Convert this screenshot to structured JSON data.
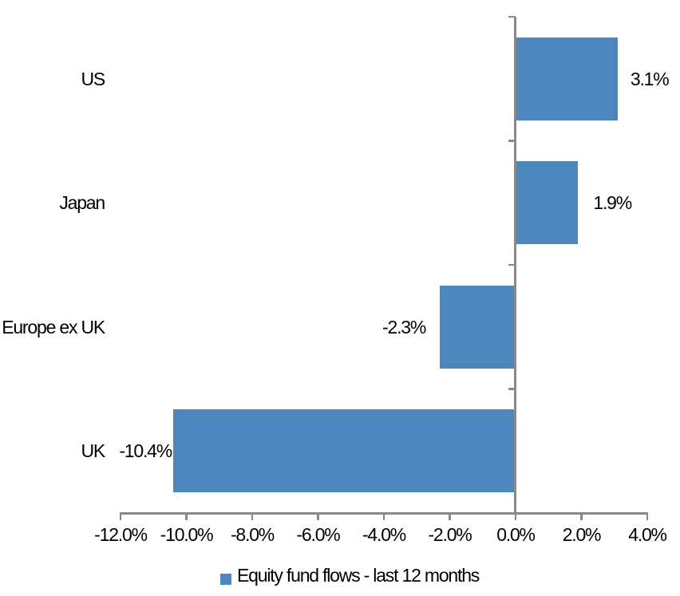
{
  "chart_data": {
    "type": "bar",
    "orientation": "horizontal",
    "title": "",
    "categories": [
      "US",
      "Japan",
      "Europe ex UK",
      "UK"
    ],
    "values": [
      3.1,
      1.9,
      -2.3,
      -10.4
    ],
    "data_labels": [
      "3.1%",
      "1.9%",
      "-2.3%",
      "-10.4%"
    ],
    "series": [
      {
        "name": "Equity fund flows - last 12 months",
        "values": [
          3.1,
          1.9,
          -2.3,
          -10.4
        ]
      }
    ],
    "xlabel": "",
    "ylabel": "",
    "xlim": [
      -12,
      4
    ],
    "x_tick_step": 2,
    "x_tick_labels": [
      "-12.0%",
      "-10.0%",
      "-8.0%",
      "-6.0%",
      "-4.0%",
      "-2.0%",
      "0.0%",
      "2.0%",
      "4.0%"
    ],
    "grid": false,
    "legend": {
      "label": "Equity fund flows - last 12 months",
      "position": "bottom"
    },
    "style": {
      "bar_color": "#4E87BE",
      "axis_color": "#898989",
      "text_color": "#000000",
      "background_color": "#FFFFFF"
    }
  }
}
